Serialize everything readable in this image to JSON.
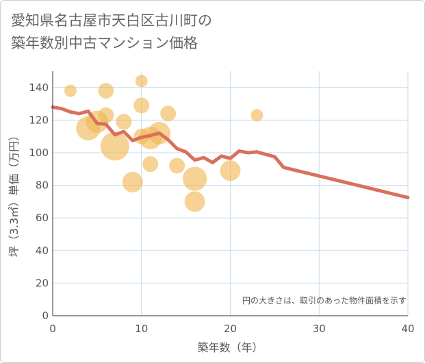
{
  "chart_data": {
    "type": "scatter",
    "title": "愛知県名古屋市天白区古川町の\n築年数別中古マンション価格",
    "xlabel": "築年数（年）",
    "ylabel": "坪（3.3㎡）単価（万円）",
    "xlim": [
      0,
      40
    ],
    "ylim": [
      0,
      150
    ],
    "xticks": [
      0,
      10,
      20,
      30,
      40
    ],
    "yticks": [
      0,
      20,
      40,
      60,
      80,
      100,
      120,
      140
    ],
    "grid": true,
    "note": "円の大きさは、取引のあった物件面積を示す",
    "colors": {
      "bubble": "#f0b64f",
      "line": "#d9705c",
      "grid": "#c6dbed"
    },
    "series": [
      {
        "type": "bubble",
        "points": [
          {
            "x": 2,
            "y": 138,
            "size": 1
          },
          {
            "x": 4,
            "y": 115,
            "size": 6
          },
          {
            "x": 5,
            "y": 119,
            "size": 5
          },
          {
            "x": 6,
            "y": 138,
            "size": 2
          },
          {
            "x": 6,
            "y": 123,
            "size": 2
          },
          {
            "x": 7,
            "y": 104,
            "size": 9
          },
          {
            "x": 8,
            "y": 119,
            "size": 2
          },
          {
            "x": 9,
            "y": 82,
            "size": 4
          },
          {
            "x": 10,
            "y": 144,
            "size": 1
          },
          {
            "x": 10,
            "y": 129,
            "size": 2
          },
          {
            "x": 10,
            "y": 110,
            "size": 2
          },
          {
            "x": 11,
            "y": 109,
            "size": 5
          },
          {
            "x": 11,
            "y": 93,
            "size": 2
          },
          {
            "x": 12,
            "y": 112,
            "size": 5
          },
          {
            "x": 13,
            "y": 124,
            "size": 2
          },
          {
            "x": 14,
            "y": 92,
            "size": 2
          },
          {
            "x": 16,
            "y": 84,
            "size": 6
          },
          {
            "x": 16,
            "y": 70,
            "size": 4
          },
          {
            "x": 20,
            "y": 89,
            "size": 4
          },
          {
            "x": 23,
            "y": 123,
            "size": 1
          }
        ]
      },
      {
        "type": "line",
        "points": [
          {
            "x": 0,
            "y": 128
          },
          {
            "x": 1,
            "y": 127
          },
          {
            "x": 2,
            "y": 125
          },
          {
            "x": 3,
            "y": 124
          },
          {
            "x": 4,
            "y": 125.5
          },
          {
            "x": 5,
            "y": 118
          },
          {
            "x": 6,
            "y": 117.5
          },
          {
            "x": 7,
            "y": 111
          },
          {
            "x": 8,
            "y": 113
          },
          {
            "x": 9,
            "y": 107.5
          },
          {
            "x": 10,
            "y": 109.5
          },
          {
            "x": 11,
            "y": 110.5
          },
          {
            "x": 12,
            "y": 112
          },
          {
            "x": 13,
            "y": 108
          },
          {
            "x": 14,
            "y": 102.5
          },
          {
            "x": 15,
            "y": 100.5
          },
          {
            "x": 16,
            "y": 95.5
          },
          {
            "x": 17,
            "y": 97
          },
          {
            "x": 18,
            "y": 94
          },
          {
            "x": 19,
            "y": 98
          },
          {
            "x": 20,
            "y": 96.5
          },
          {
            "x": 21,
            "y": 101
          },
          {
            "x": 22,
            "y": 100
          },
          {
            "x": 23,
            "y": 100.5
          },
          {
            "x": 24,
            "y": 99
          },
          {
            "x": 25,
            "y": 97.5
          },
          {
            "x": 26,
            "y": 91
          },
          {
            "x": 40,
            "y": 72.5
          }
        ]
      }
    ]
  }
}
